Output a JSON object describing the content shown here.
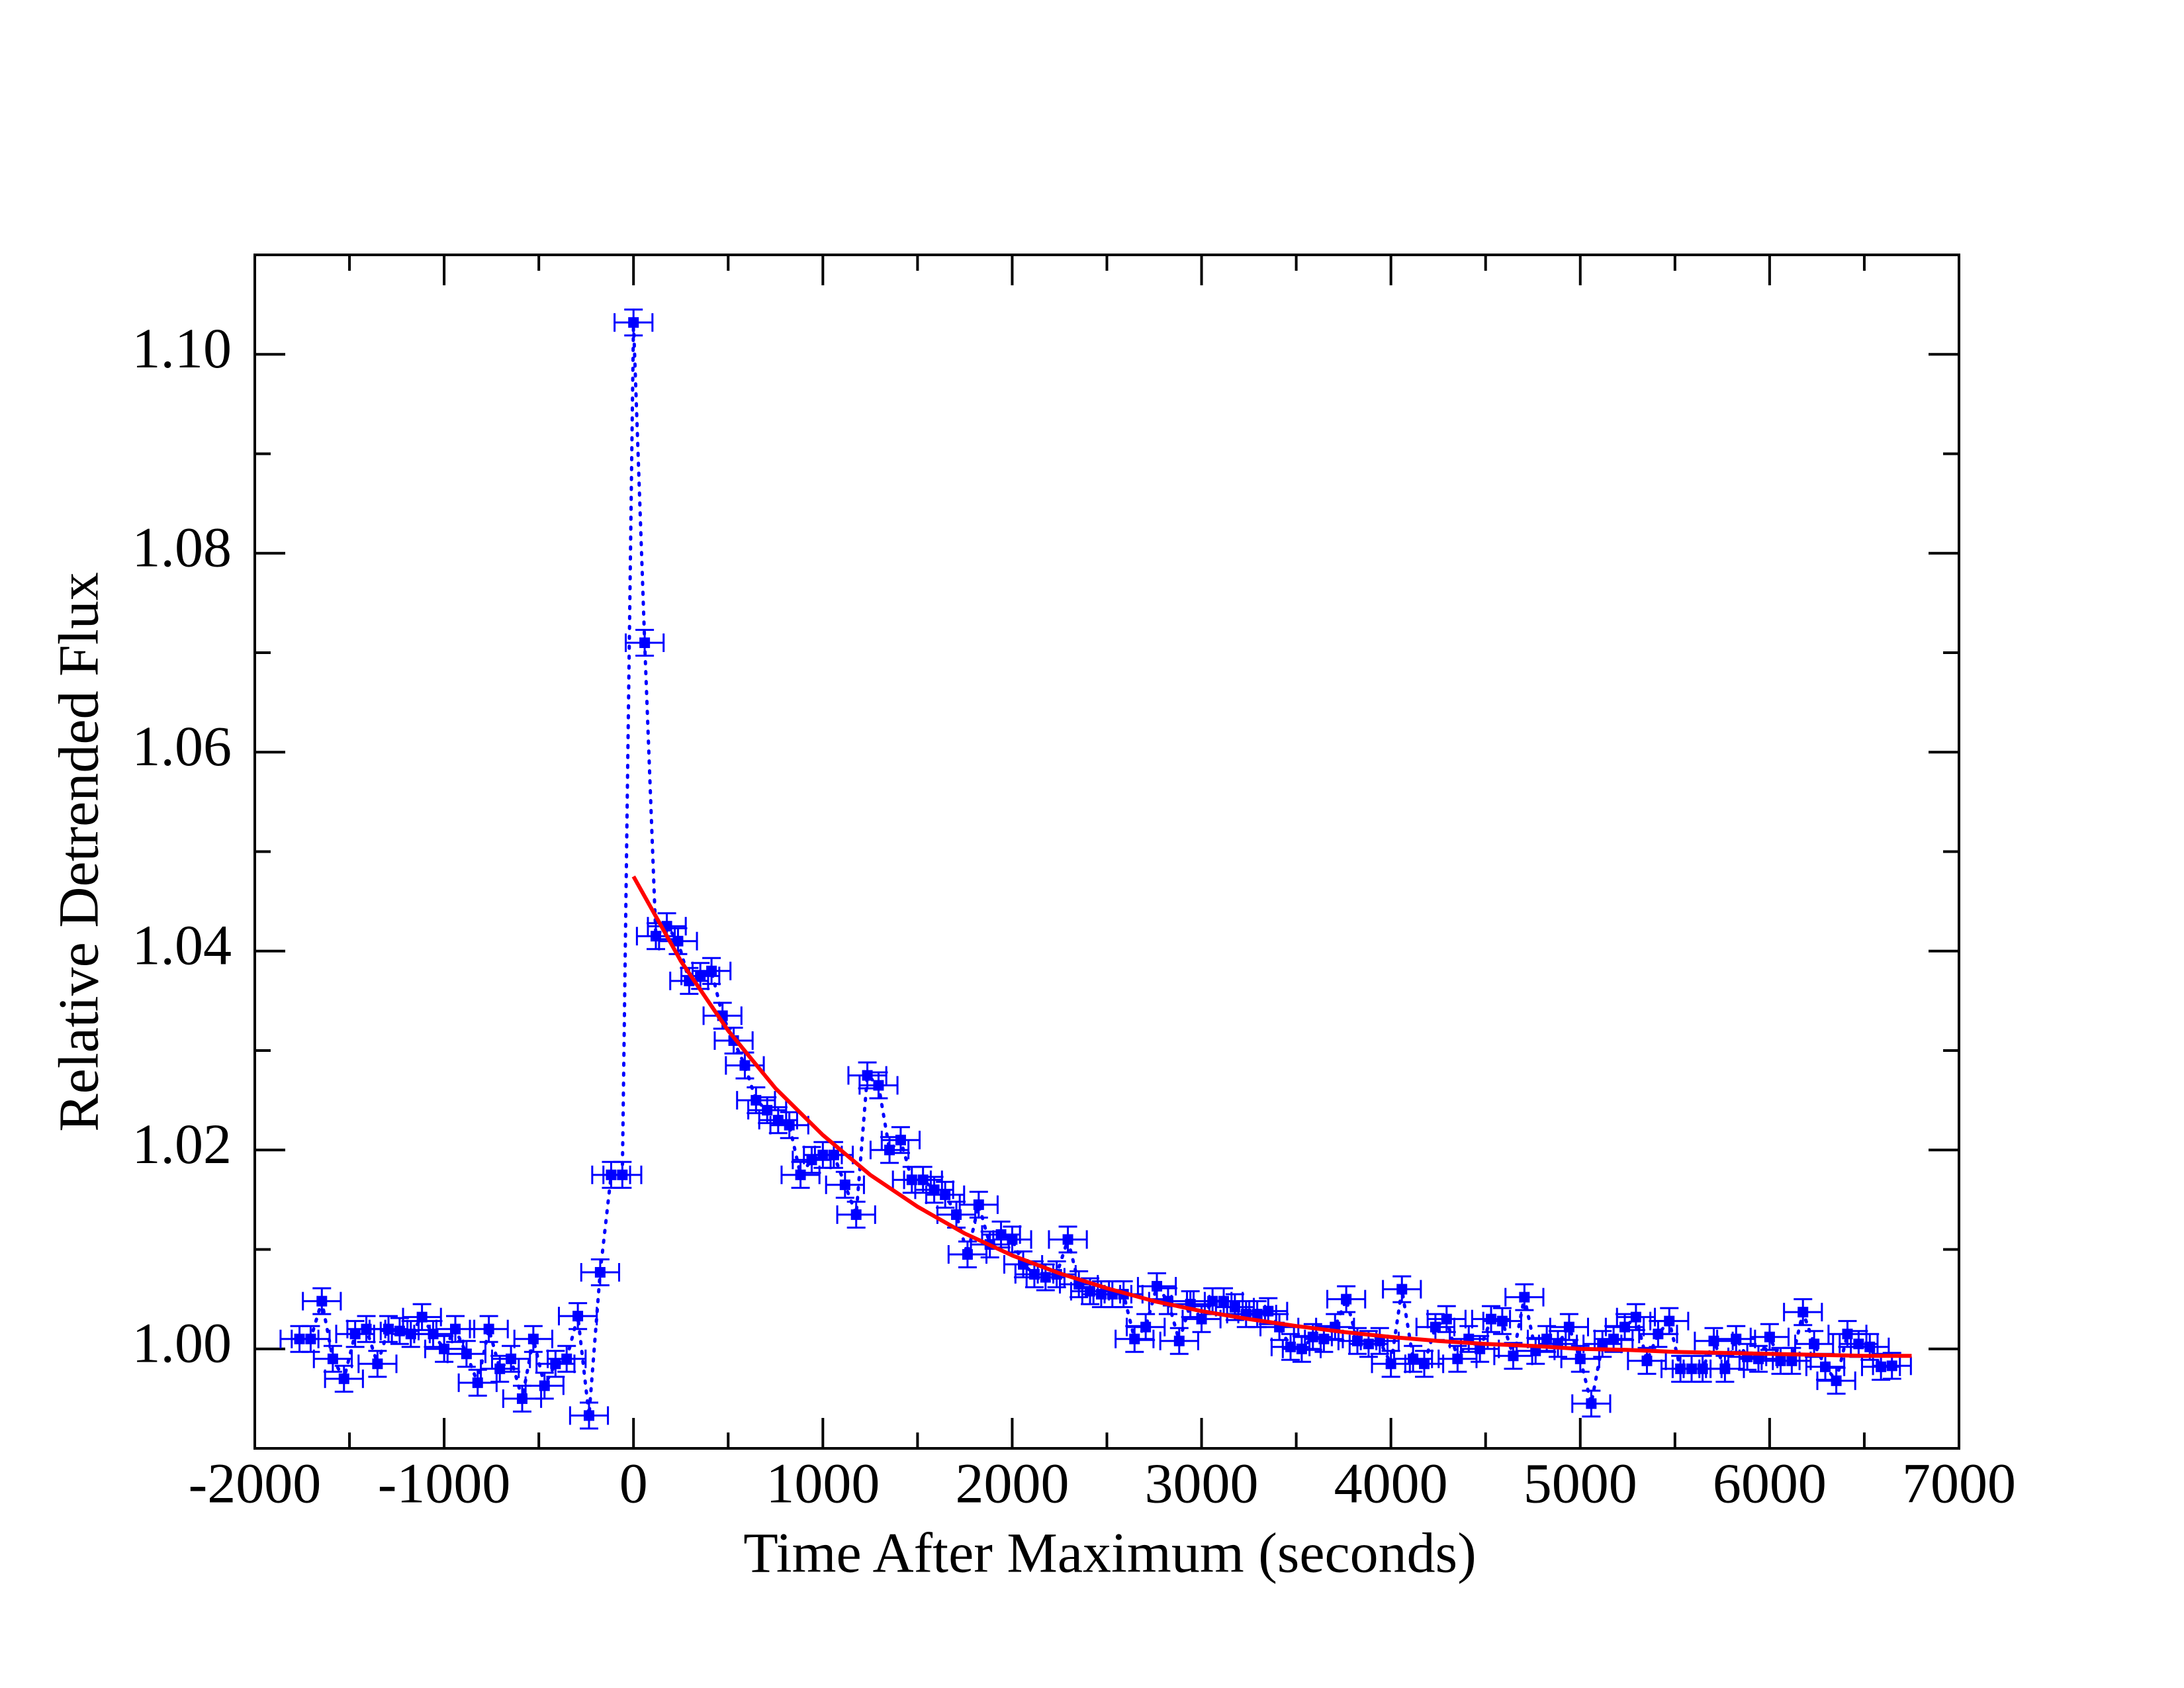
{
  "chart_data": {
    "type": "scatter",
    "xlabel": "Time After Maximum (seconds)",
    "ylabel": "Relative Detrended Flux",
    "xlim": [
      -2000,
      7000
    ],
    "ylim": [
      0.99,
      1.11
    ],
    "xticks": [
      -2000,
      -1000,
      0,
      1000,
      2000,
      3000,
      4000,
      5000,
      6000,
      7000
    ],
    "xminorticks": [
      -1500,
      -500,
      500,
      1500,
      2500,
      3500,
      4500,
      5500,
      6500
    ],
    "yticks": [
      {
        "value": 1.0,
        "label": "1.00"
      },
      {
        "value": 1.02,
        "label": "1.02"
      },
      {
        "value": 1.04,
        "label": "1.04"
      },
      {
        "value": 1.06,
        "label": "1.06"
      },
      {
        "value": 1.08,
        "label": "1.08"
      },
      {
        "value": 1.1,
        "label": "1.10"
      }
    ],
    "yminorticks": [
      0.99,
      1.01,
      1.03,
      1.05,
      1.07,
      1.09
    ],
    "points": {
      "color": "#0000ff",
      "xerr": 100,
      "yerr": 0.0013,
      "x": [
        -1764,
        -1705,
        -1646,
        -1588,
        -1529,
        -1470,
        -1411,
        -1352,
        -1294,
        -1235,
        -1176,
        -1117,
        -1058,
        -1000,
        -941,
        -882,
        -823,
        -764,
        -706,
        -647,
        -588,
        -529,
        -470,
        -412,
        -353,
        -294,
        -235,
        -176,
        -118,
        -59,
        0,
        59,
        118,
        176,
        235,
        294,
        353,
        412,
        470,
        529,
        588,
        647,
        706,
        764,
        823,
        882,
        941,
        1000,
        1058,
        1117,
        1176,
        1235,
        1294,
        1352,
        1411,
        1470,
        1529,
        1588,
        1646,
        1705,
        1764,
        1823,
        1882,
        1941,
        2000,
        2058,
        2117,
        2176,
        2235,
        2294,
        2352,
        2411,
        2470,
        2529,
        2588,
        2646,
        2705,
        2764,
        2823,
        2882,
        2941,
        3000,
        3058,
        3117,
        3176,
        3235,
        3294,
        3352,
        3411,
        3470,
        3529,
        3588,
        3646,
        3705,
        3764,
        3823,
        3882,
        3941,
        4000,
        4058,
        4117,
        4176,
        4235,
        4294,
        4352,
        4411,
        4470,
        4529,
        4588,
        4646,
        4705,
        4764,
        4823,
        4882,
        4941,
        5000,
        5058,
        5117,
        5176,
        5235,
        5294,
        5352,
        5411,
        5470,
        5529,
        5588,
        5646,
        5705,
        5764,
        5823,
        5882,
        5941,
        6000,
        6058,
        6117,
        6176,
        6235,
        6294,
        6352,
        6411,
        6470,
        6529,
        6588,
        6646
      ],
      "values": [
        1.001,
        1.001,
        1.0048,
        0.999,
        0.997,
        1.0015,
        1.002,
        0.9985,
        1.002,
        1.0018,
        1.0015,
        1.0032,
        1.0015,
        1.0,
        1.002,
        0.9995,
        0.9966,
        1.002,
        0.998,
        0.999,
        0.995,
        1.001,
        0.9963,
        0.9985,
        0.999,
        1.0033,
        0.9933,
        1.0077,
        1.0175,
        1.0175,
        1.1032,
        1.071,
        1.0415,
        1.0425,
        1.041,
        1.037,
        1.0375,
        1.038,
        1.0335,
        1.031,
        1.0285,
        1.025,
        1.024,
        1.023,
        1.0225,
        1.0175,
        1.019,
        1.0195,
        1.0195,
        1.0165,
        1.0135,
        1.0275,
        1.0265,
        1.02,
        1.021,
        1.017,
        1.017,
        1.016,
        1.0155,
        1.0135,
        1.0095,
        1.0145,
        1.0105,
        1.0115,
        1.011,
        1.0085,
        1.0075,
        1.0072,
        1.0075,
        1.011,
        1.0065,
        1.0058,
        1.0055,
        1.0055,
        1.0055,
        1.001,
        1.0022,
        1.0063,
        1.0048,
        1.0008,
        1.0045,
        1.003,
        1.0048,
        1.0048,
        1.0042,
        1.0035,
        1.0035,
        1.0038,
        1.0022,
        1.0002,
        1.0,
        1.0012,
        1.001,
        1.0022,
        1.005,
        1.0008,
        1.0005,
        1.0008,
        0.9985,
        1.006,
        0.999,
        0.9985,
        1.0022,
        1.003,
        0.999,
        1.001,
        1.0,
        1.003,
        1.0028,
        0.9993,
        1.0052,
        0.9998,
        1.001,
        1.0005,
        1.0022,
        0.999,
        0.9945,
        1.0005,
        1.001,
        1.0022,
        1.0032,
        0.9988,
        1.0015,
        1.0028,
        0.998,
        0.998,
        0.998,
        1.0008,
        0.998,
        1.001,
        0.9992,
        0.999,
        1.0012,
        0.9988,
        0.9988,
        1.0037,
        1.0005,
        0.9982,
        0.9968,
        1.0015,
        1.0005,
        1.0002,
        0.9982,
        0.9983
      ]
    },
    "fit": {
      "color": "#ff0000",
      "x": [
        0,
        250,
        500,
        750,
        1000,
        1250,
        1500,
        1750,
        2000,
        2250,
        2500,
        2750,
        3000,
        3250,
        3500,
        3750,
        4000,
        4250,
        4500,
        4750,
        5000,
        5250,
        5500,
        5750,
        6000,
        6250,
        6500,
        6750
      ],
      "values": [
        1.0475,
        1.039,
        1.032,
        1.0262,
        1.0215,
        1.0175,
        1.0143,
        1.0116,
        1.0094,
        1.0076,
        1.0061,
        1.0048,
        1.0038,
        1.003,
        1.0023,
        1.0017,
        1.0012,
        1.0008,
        1.0005,
        1.0003,
        1.0,
        0.9999,
        0.9997,
        0.9996,
        0.9995,
        0.9994,
        0.9993,
        0.9993
      ]
    }
  }
}
